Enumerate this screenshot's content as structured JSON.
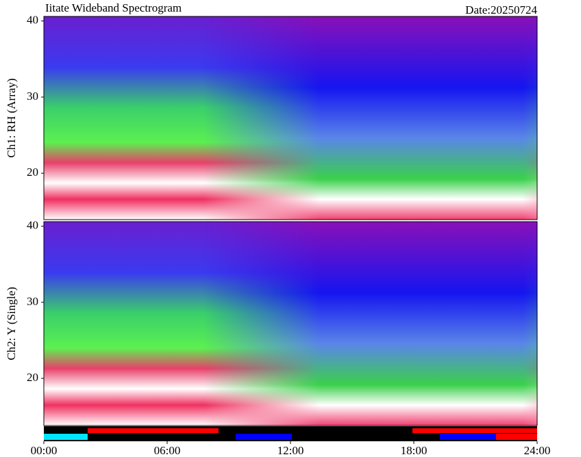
{
  "chart_data": {
    "type": "spectrogram",
    "title": "Iitate Wideband Spectrogram",
    "date_label": "Date:20250724",
    "xlim": [
      0,
      24
    ],
    "xticks": [
      {
        "value": 0,
        "label": "00:00"
      },
      {
        "value": 6,
        "label": "06:00"
      },
      {
        "value": 12,
        "label": "12:00"
      },
      {
        "value": 18,
        "label": "18:00"
      },
      {
        "value": 24,
        "label": "24:00"
      }
    ],
    "panels": [
      {
        "ylabel": "Ch1: RH (Array)",
        "ylim": [
          13.9,
          40.6
        ],
        "yticks": [
          20,
          30,
          40
        ]
      },
      {
        "ylabel": "Ch2: Y (Single)",
        "ylim": [
          13.8,
          40.6
        ],
        "yticks": [
          20,
          30,
          40
        ]
      }
    ],
    "status_upper": [
      {
        "start": 2.13,
        "end": 8.5,
        "color": "#ff0000"
      },
      {
        "start": 17.93,
        "end": 24,
        "color": "#ff0000"
      }
    ],
    "status_lower": [
      {
        "start": 0,
        "end": 2.13,
        "color": "#00e5ff"
      },
      {
        "start": 9.33,
        "end": 12.07,
        "color": "#0000ff"
      },
      {
        "start": 19.27,
        "end": 22,
        "color": "#0000ff"
      },
      {
        "start": 22,
        "end": 24,
        "color": "#ff0000"
      }
    ]
  }
}
